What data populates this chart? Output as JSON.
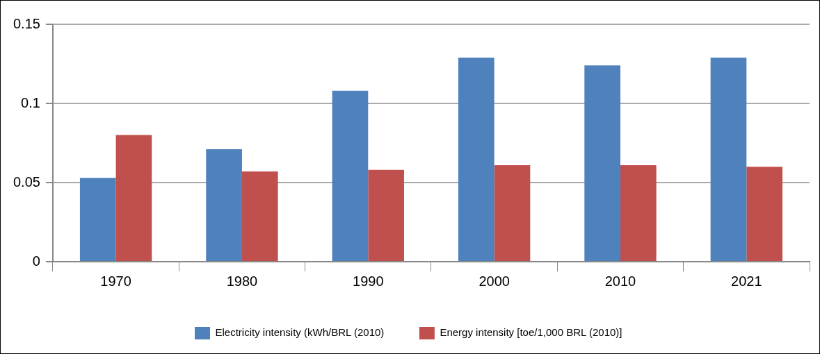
{
  "chart_data": {
    "type": "bar",
    "categories": [
      "1970",
      "1980",
      "1990",
      "2000",
      "2010",
      "2021"
    ],
    "series": [
      {
        "name": "Electricity intensity (kWh/BRL (2010)",
        "color": "#4f81bd",
        "values": [
          0.053,
          0.071,
          0.108,
          0.129,
          0.124,
          0.129
        ]
      },
      {
        "name": "Energy intensity [toe/1,000 BRL (2010)]",
        "color": "#c0504d",
        "values": [
          0.08,
          0.057,
          0.058,
          0.061,
          0.061,
          0.06
        ]
      }
    ],
    "ylim": [
      0,
      0.15
    ],
    "yticks": [
      0,
      {
        "value": 0.05,
        "label": "0.05"
      },
      {
        "value": 0.1,
        "label": "0.1"
      },
      {
        "value": 0.15,
        "label": "0.15"
      }
    ],
    "grid": "y",
    "legend": "bottom"
  }
}
